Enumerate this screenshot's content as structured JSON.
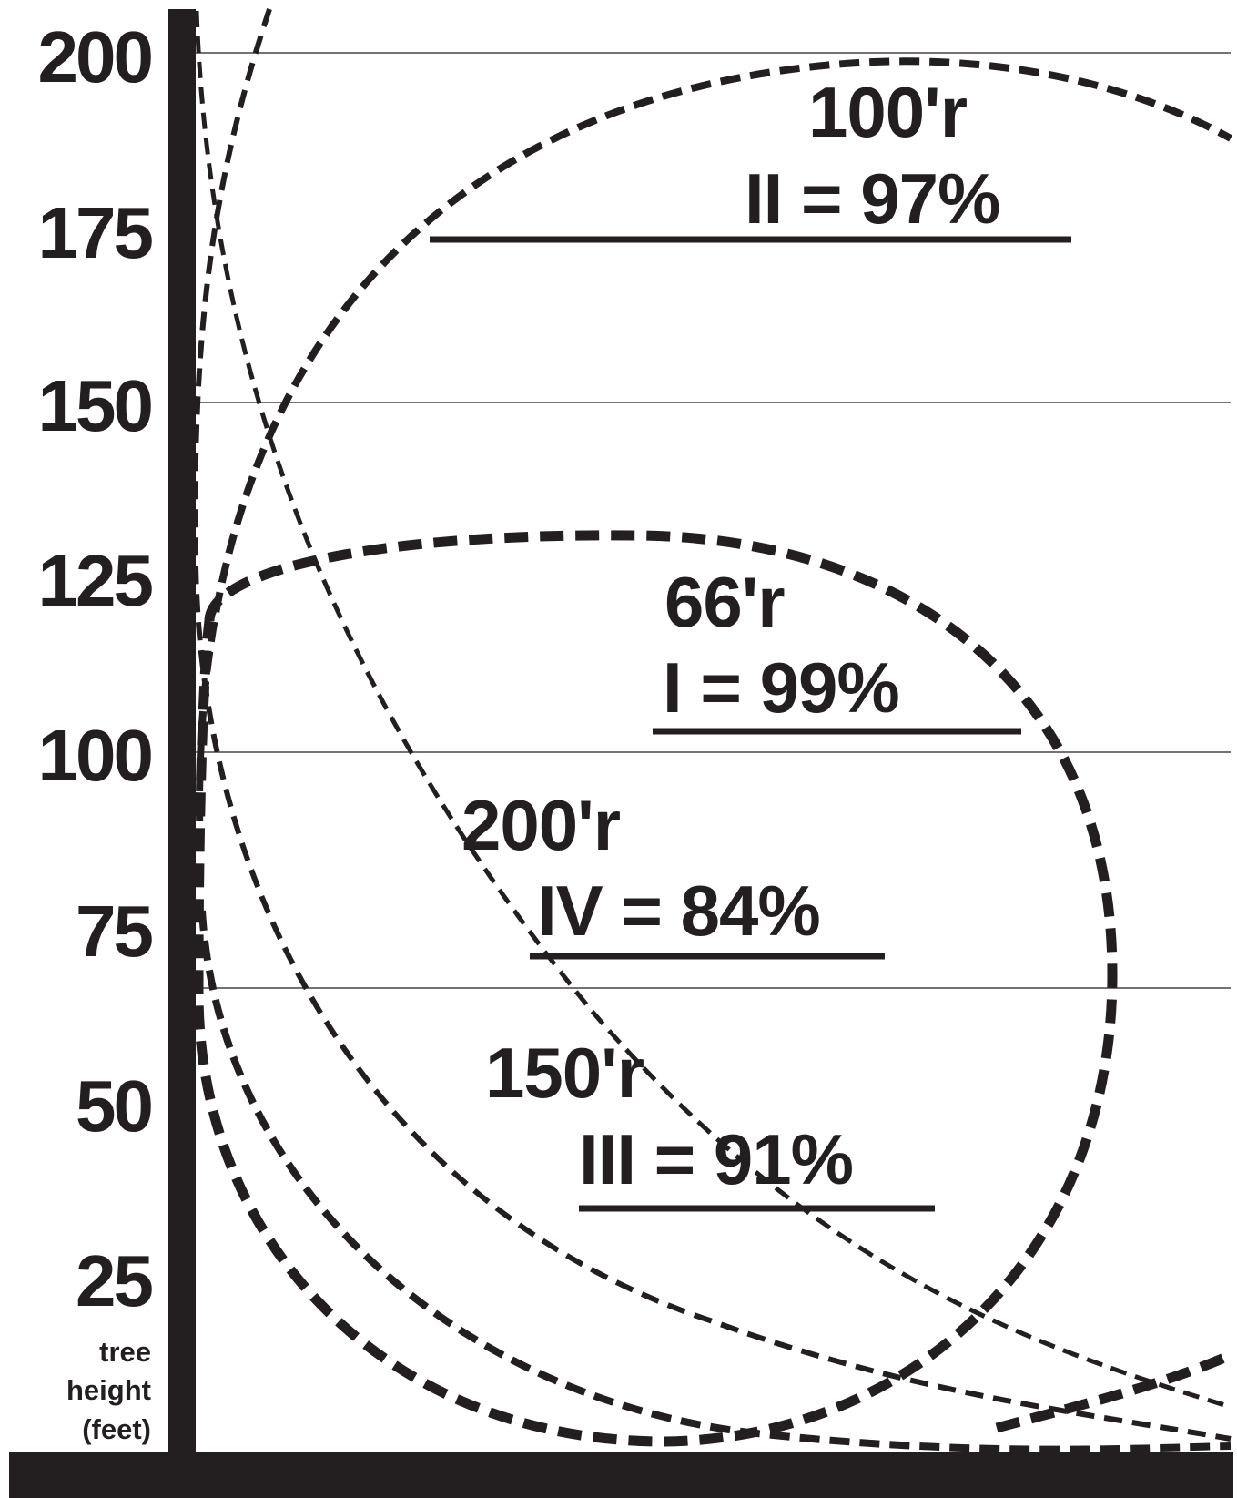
{
  "axis": {
    "title_lines": [
      "tree",
      "height",
      "(feet)"
    ],
    "ticks": [
      "200",
      "175",
      "150",
      "125",
      "100",
      "75",
      "50",
      "25"
    ]
  },
  "circles": [
    {
      "radius_label": "66'r",
      "class_label": "I = 99%"
    },
    {
      "radius_label": "100'r",
      "class_label": "II = 97%"
    },
    {
      "radius_label": "150'r",
      "class_label": "III = 91%"
    },
    {
      "radius_label": "200'r",
      "class_label": "IV = 84%"
    }
  ],
  "colors": {
    "ink": "#231f20",
    "background": "#ffffff"
  }
}
